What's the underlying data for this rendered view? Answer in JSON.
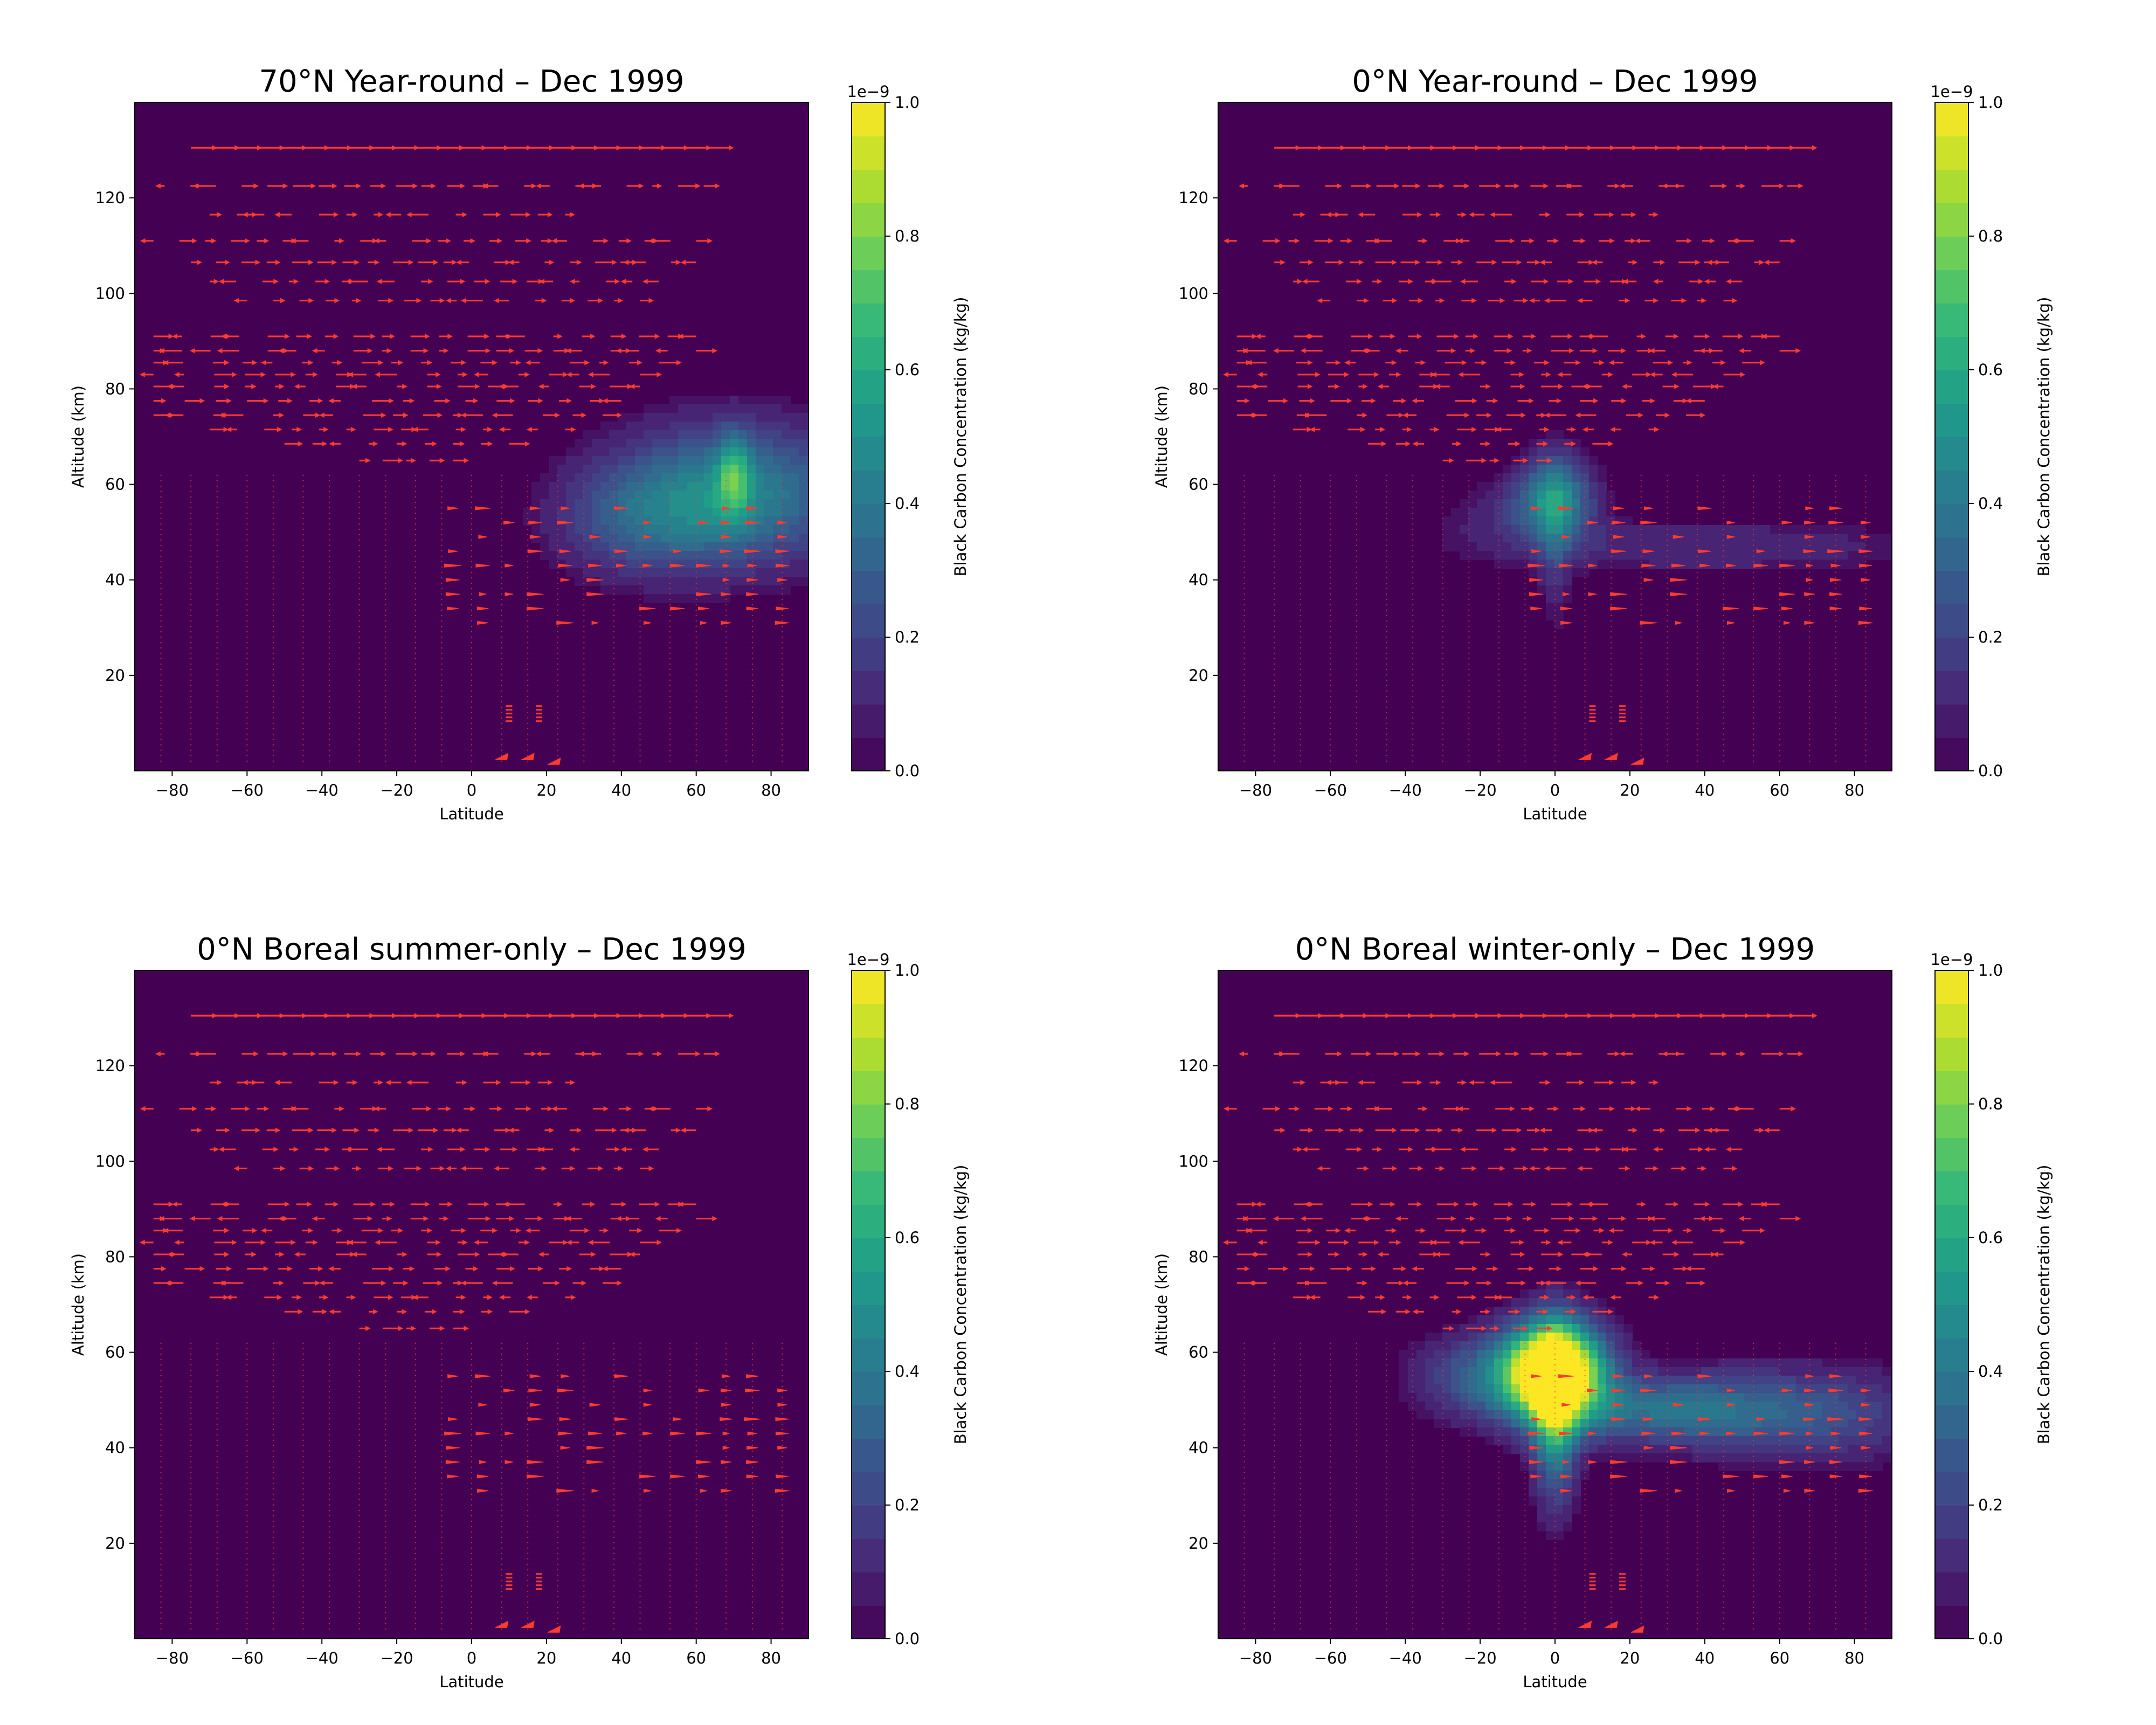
{
  "figure": {
    "colormap": "viridis",
    "vector_color": "#ff3b2f",
    "background_color": "#440154"
  },
  "chart_data": [
    {
      "type": "heatmap",
      "title": "70°N Year-round – Dec 1999",
      "xlabel": "Latitude",
      "ylabel": "Altitude (km)",
      "colorbar_label": "Black Carbon Concentration (kg/kg)",
      "colorbar_multiplier": "1e−9",
      "xlim": [
        -90,
        90
      ],
      "ylim": [
        0,
        140
      ],
      "clim": [
        0,
        1.0
      ],
      "xticks": [
        "−80",
        "−60",
        "−40",
        "−20",
        "0",
        "20",
        "40",
        "60",
        "80"
      ],
      "yticks": [
        "20",
        "40",
        "60",
        "80",
        "100",
        "120"
      ],
      "colorbar_ticks": [
        "0.0",
        "0.2",
        "0.4",
        "0.6",
        "0.8",
        "1.0"
      ],
      "plumes": [
        {
          "lat": 70,
          "alt": 58,
          "sx": 22,
          "sy": 10,
          "peak": 0.45
        },
        {
          "lat": 70,
          "alt": 62,
          "sx": 3,
          "sy": 6,
          "peak": 0.35
        },
        {
          "lat": 45,
          "alt": 52,
          "sx": 16,
          "sy": 8,
          "peak": 0.2
        }
      ]
    },
    {
      "type": "heatmap",
      "title": "0°N Year-round – Dec 1999",
      "xlabel": "Latitude",
      "ylabel": "Altitude (km)",
      "colorbar_label": "Black Carbon Concentration (kg/kg)",
      "colorbar_multiplier": "1e−9",
      "xlim": [
        -90,
        90
      ],
      "ylim": [
        0,
        140
      ],
      "clim": [
        0,
        1.0
      ],
      "xticks": [
        "−80",
        "−60",
        "−40",
        "−20",
        "0",
        "20",
        "40",
        "60",
        "80"
      ],
      "yticks": [
        "20",
        "40",
        "60",
        "80",
        "100",
        "120"
      ],
      "colorbar_ticks": [
        "0.0",
        "0.2",
        "0.4",
        "0.6",
        "0.8",
        "1.0"
      ],
      "plumes": [
        {
          "lat": 0,
          "alt": 57,
          "sx": 7,
          "sy": 6,
          "peak": 0.45
        },
        {
          "lat": 0,
          "alt": 48,
          "sx": 3,
          "sy": 12,
          "peak": 0.15
        },
        {
          "lat": -12,
          "alt": 54,
          "sx": 12,
          "sy": 5,
          "peak": 0.1
        },
        {
          "lat": 40,
          "alt": 47,
          "sx": 45,
          "sy": 4,
          "peak": 0.12
        }
      ]
    },
    {
      "type": "heatmap",
      "title": "0°N Boreal summer-only – Dec 1999",
      "xlabel": "Latitude",
      "ylabel": "Altitude (km)",
      "colorbar_label": "Black Carbon Concentration (kg/kg)",
      "colorbar_multiplier": "1e−9",
      "xlim": [
        -90,
        90
      ],
      "ylim": [
        0,
        140
      ],
      "clim": [
        0,
        1.0
      ],
      "xticks": [
        "−80",
        "−60",
        "−40",
        "−20",
        "0",
        "20",
        "40",
        "60",
        "80"
      ],
      "yticks": [
        "20",
        "40",
        "60",
        "80",
        "100",
        "120"
      ],
      "colorbar_ticks": [
        "0.0",
        "0.2",
        "0.4",
        "0.6",
        "0.8",
        "1.0"
      ],
      "plumes": []
    },
    {
      "type": "heatmap",
      "title": "0°N Boreal winter-only – Dec 1999",
      "xlabel": "Latitude",
      "ylabel": "Altitude (km)",
      "colorbar_label": "Black Carbon Concentration (kg/kg)",
      "colorbar_multiplier": "1e−9",
      "xlim": [
        -90,
        90
      ],
      "ylim": [
        0,
        140
      ],
      "clim": [
        0,
        1.0
      ],
      "xticks": [
        "−80",
        "−60",
        "−40",
        "−20",
        "0",
        "20",
        "40",
        "60",
        "80"
      ],
      "yticks": [
        "20",
        "40",
        "60",
        "80",
        "100",
        "120"
      ],
      "colorbar_ticks": [
        "0.0",
        "0.2",
        "0.4",
        "0.6",
        "0.8",
        "1.0"
      ],
      "plumes": [
        {
          "lat": 0,
          "alt": 56,
          "sx": 9,
          "sy": 7,
          "peak": 1.3
        },
        {
          "lat": 0,
          "alt": 46,
          "sx": 4,
          "sy": 12,
          "peak": 0.5
        },
        {
          "lat": -18,
          "alt": 55,
          "sx": 13,
          "sy": 6,
          "peak": 0.3
        },
        {
          "lat": 30,
          "alt": 48,
          "sx": 22,
          "sy": 5,
          "peak": 0.35
        },
        {
          "lat": 70,
          "alt": 47,
          "sx": 22,
          "sy": 7,
          "peak": 0.22
        }
      ]
    }
  ]
}
